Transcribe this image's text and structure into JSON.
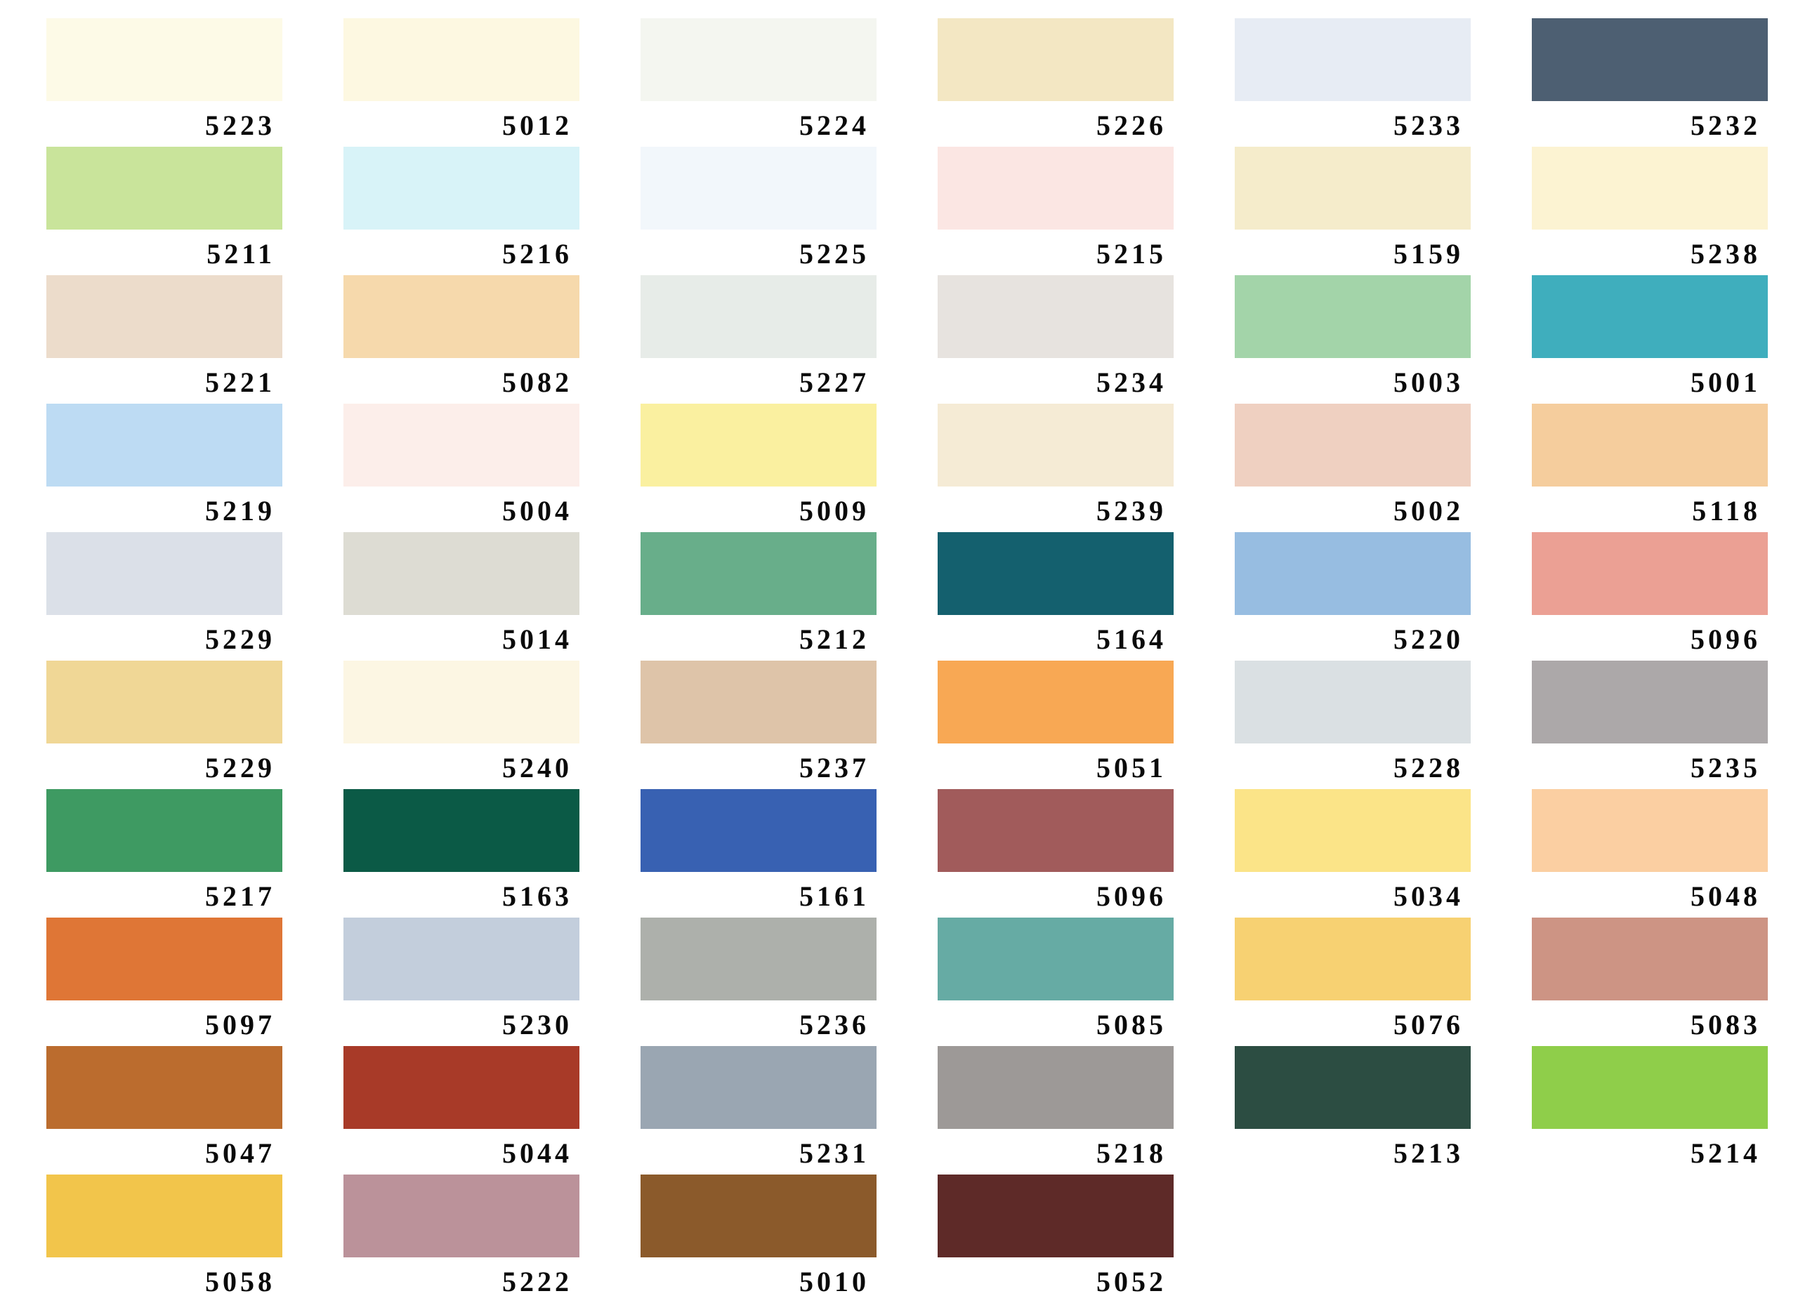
{
  "page": {
    "background": "#ffffff"
  },
  "chart_data": {
    "type": "table",
    "description_layout": {
      "columns": 6,
      "rows": 10,
      "legend_position": "none",
      "grid": "off"
    },
    "rows": [
      [
        {
          "code": "5223",
          "color": "#FDFAE7"
        },
        {
          "code": "5012",
          "color": "#FDF8E1"
        },
        {
          "code": "5224",
          "color": "#F4F6F0"
        },
        {
          "code": "5226",
          "color": "#F3E7C3"
        },
        {
          "code": "5233",
          "color": "#E7ECF4"
        },
        {
          "code": "5232",
          "color": "#4D5F72"
        }
      ],
      [
        {
          "code": "5211",
          "color": "#C9E49B"
        },
        {
          "code": "5216",
          "color": "#D8F3F8"
        },
        {
          "code": "5225",
          "color": "#F2F7FB"
        },
        {
          "code": "5215",
          "color": "#FBE6E3"
        },
        {
          "code": "5159",
          "color": "#F5ECCB"
        },
        {
          "code": "5238",
          "color": "#FCF3D2"
        }
      ],
      [
        {
          "code": "5221",
          "color": "#ECDCCB"
        },
        {
          "code": "5082",
          "color": "#F6D9AC"
        },
        {
          "code": "5227",
          "color": "#E7ECE8"
        },
        {
          "code": "5234",
          "color": "#E7E3DF"
        },
        {
          "code": "5003",
          "color": "#A3D4A9"
        },
        {
          "code": "5001",
          "color": "#3FAEBD"
        }
      ],
      [
        {
          "code": "5219",
          "color": "#BDDBF3"
        },
        {
          "code": "5004",
          "color": "#FCEEEA"
        },
        {
          "code": "5009",
          "color": "#FAF0A0"
        },
        {
          "code": "5239",
          "color": "#F5EBD5"
        },
        {
          "code": "5002",
          "color": "#EFD0C1"
        },
        {
          "code": "5118",
          "color": "#F5CD9D"
        }
      ],
      [
        {
          "code": "5229",
          "color": "#DBE0E8"
        },
        {
          "code": "5014",
          "color": "#DDDCD3"
        },
        {
          "code": "5212",
          "color": "#68AE8A"
        },
        {
          "code": "5164",
          "color": "#14606E"
        },
        {
          "code": "5220",
          "color": "#97BDE1"
        },
        {
          "code": "5096",
          "color": "#EBA094"
        }
      ],
      [
        {
          "code": "5229",
          "color": "#F0D796"
        },
        {
          "code": "5240",
          "color": "#FCF6E3"
        },
        {
          "code": "5237",
          "color": "#DEC4A9"
        },
        {
          "code": "5051",
          "color": "#F8A854"
        },
        {
          "code": "5228",
          "color": "#DAE0E3"
        },
        {
          "code": "5235",
          "color": "#ACA8A9"
        }
      ],
      [
        {
          "code": "5217",
          "color": "#3E9A62"
        },
        {
          "code": "5163",
          "color": "#0B5A46"
        },
        {
          "code": "5161",
          "color": "#3861B2"
        },
        {
          "code": "5096",
          "color": "#A15B5B"
        },
        {
          "code": "5034",
          "color": "#FBE488"
        },
        {
          "code": "5048",
          "color": "#FBCFA2"
        }
      ],
      [
        {
          "code": "5097",
          "color": "#DF7636"
        },
        {
          "code": "5230",
          "color": "#C3CEDC"
        },
        {
          "code": "5236",
          "color": "#ADB0AB"
        },
        {
          "code": "5085",
          "color": "#66ABA4"
        },
        {
          "code": "5076",
          "color": "#F7D172"
        },
        {
          "code": "5083",
          "color": "#CD9484"
        }
      ],
      [
        {
          "code": "5047",
          "color": "#BB6C2E"
        },
        {
          "code": "5044",
          "color": "#A83A28"
        },
        {
          "code": "5231",
          "color": "#9AA6B2"
        },
        {
          "code": "5218",
          "color": "#9D9997"
        },
        {
          "code": "5213",
          "color": "#2C4D42"
        },
        {
          "code": "5214",
          "color": "#8FCE4A"
        }
      ],
      [
        {
          "code": "5058",
          "color": "#F2C54B"
        },
        {
          "code": "5222",
          "color": "#BB929A"
        },
        {
          "code": "5010",
          "color": "#8B5A2B"
        },
        {
          "code": "5052",
          "color": "#5E2A28"
        }
      ]
    ]
  }
}
